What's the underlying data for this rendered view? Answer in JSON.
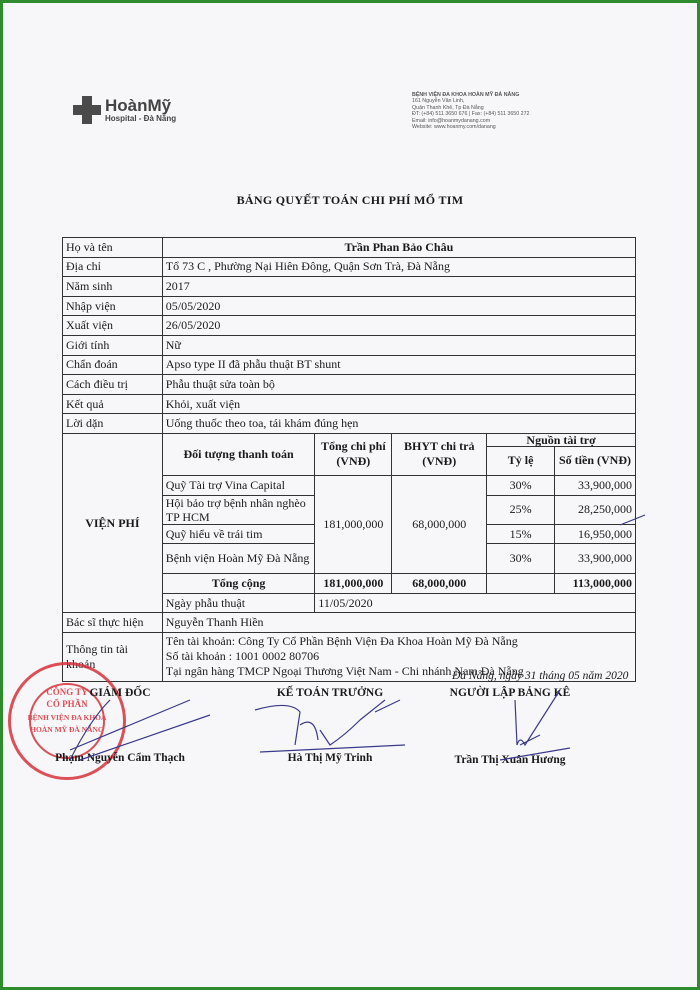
{
  "header": {
    "logo_name": "HoànMỹ",
    "logo_sub": "Hospital - Đà Nẵng",
    "address_lines": [
      "BỆNH VIỆN ĐA KHOA HOÀN MỸ ĐÀ NẴNG",
      "161 Nguyễn Văn Linh,",
      "Quận Thanh Khê, Tp Đà Nẵng",
      "ĐT: (+84) 511 3650 676 | Fax: (+84) 511 3650 272",
      "Email: info@hoanmydanang.com",
      "Website: www.hoanmy.com/danang"
    ]
  },
  "title": "BẢNG QUYẾT TOÁN CHI PHÍ MỔ TIM",
  "info": [
    {
      "label": "Họ và tên",
      "value": "Trần Phan Bảo Châu"
    },
    {
      "label": "Địa chỉ",
      "value": "Tổ 73 C  , Phường Nại Hiên Đông, Quận Sơn Trà, Đà Nẵng"
    },
    {
      "label": "Năm sinh",
      "value": "2017"
    },
    {
      "label": "Nhập viện",
      "value": "05/05/2020"
    },
    {
      "label": "Xuất viện",
      "value": "26/05/2020"
    },
    {
      "label": "Giới tính",
      "value": "Nữ"
    },
    {
      "label": "Chẩn đoán",
      "value": "Apso type II đã phẫu thuật BT shunt"
    },
    {
      "label": "Cách điều trị",
      "value": "Phẫu thuật sửa toàn bộ"
    },
    {
      "label": "Kết quả",
      "value": "Khỏi, xuất viện"
    },
    {
      "label": "Lời dặn",
      "value": "Uống thuốc theo toa, tái khám đúng hẹn"
    }
  ],
  "fees": {
    "label": "VIỆN PHÍ",
    "headers": {
      "payer": "Đối tượng thanh toán",
      "total": "Tổng chi phí (VNĐ)",
      "bhyt": "BHYT chi trả (VNĐ)",
      "source": "Nguồn tài trợ",
      "rate": "Tỷ lệ",
      "amount": "Số tiền (VNĐ)"
    },
    "total_cost": "181,000,000",
    "bhyt_paid": "68,000,000",
    "rows": [
      {
        "payer": "Quỹ Tài trợ Vina Capital",
        "rate": "30%",
        "amount": "33,900,000"
      },
      {
        "payer": "Hội bảo trợ bệnh nhân nghèo TP HCM",
        "rate": "25%",
        "amount": "28,250,000"
      },
      {
        "payer": "Quỹ hiểu về trái tim",
        "rate": "15%",
        "amount": "16,950,000"
      },
      {
        "payer": "Bệnh viện Hoàn Mỹ Đà Nẵng",
        "rate": "30%",
        "amount": "33,900,000"
      }
    ],
    "sum": {
      "label": "Tổng cộng",
      "total": "181,000,000",
      "bhyt": "68,000,000",
      "amount": "113,000,000"
    }
  },
  "surgery_date": {
    "label": "Ngày phẫu thuật",
    "value": "11/05/2020"
  },
  "doctor": {
    "label": "Bác sĩ thực hiện",
    "value": "Nguyễn Thanh Hiền"
  },
  "account": {
    "label": "Thông tin tài khoản",
    "lines": [
      "Tên tài khoản: Công Ty Cổ Phần Bệnh Viện Đa Khoa Hoàn Mỹ Đà Nẵng",
      "Số tài khoản : 1001 0002 80706",
      "Tại ngân hàng TMCP Ngoại Thương Việt Nam - Chi nhánh Nam Đà Nẵng"
    ]
  },
  "place_date": "Đà Nẵng, ngày 31 tháng 05 năm 2020",
  "signatures": [
    {
      "role": "GIÁM ĐỐC",
      "name": "Phạm Nguyễn Cẩm Thạch"
    },
    {
      "role": "KẾ TOÁN TRƯỞNG",
      "name": "Hà Thị Mỹ Trinh"
    },
    {
      "role": "NGƯỜI LẬP BẢNG KÊ",
      "name": "Trần Thị Xuân Hương"
    }
  ],
  "stamp": {
    "outer": "M.S.D.N: 0400495597 - C.T.C.P - THÀNH PHỐ ĐÀ NẴNG",
    "lines": [
      "CÔNG TY",
      "CỔ PHẦN",
      "BỆNH VIỆN ĐA KHOA",
      "HOÀN MỸ ĐÀ NẴNG"
    ]
  },
  "colors": {
    "frame": "#2e8b2e",
    "stamp": "#d8323c",
    "signature_ink": "#3a3a8a"
  }
}
